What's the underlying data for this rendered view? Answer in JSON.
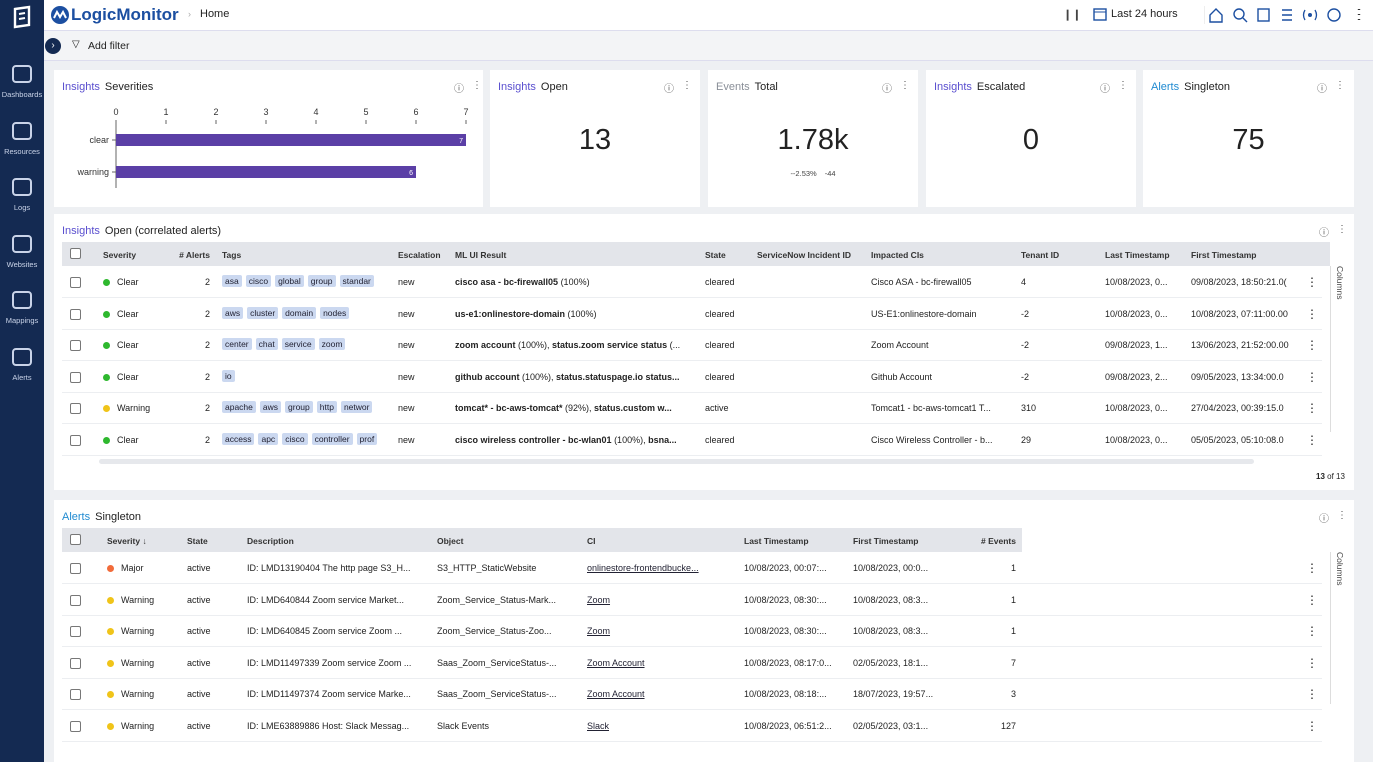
{
  "sidebar": [
    {
      "label": "Dashboards"
    },
    {
      "label": "Resources"
    },
    {
      "label": "Logs"
    },
    {
      "label": "Websites"
    },
    {
      "label": "Mappings"
    },
    {
      "label": "Alerts"
    }
  ],
  "header": {
    "brand": "LogicMonitor",
    "breadcrumb": "Home",
    "time_range": "Last 24 hours"
  },
  "filter_bar": {
    "add_filter": "Add filter"
  },
  "severities": {
    "category": "Insights",
    "category_color": "#5a4fcf",
    "title": "Severities",
    "chart": {
      "type": "bar",
      "categories": [
        "clear",
        "warning"
      ],
      "values": [
        7,
        6
      ],
      "color": "#5b3fa6",
      "xlim": [
        0,
        7
      ],
      "xticks": [
        0,
        1,
        2,
        3,
        4,
        5,
        6,
        7
      ]
    }
  },
  "kpis": [
    {
      "category": "Insights",
      "category_color": "#5a4fcf",
      "title": "Open",
      "value": 13
    },
    {
      "category": "Events",
      "category_color": "#8a8f98",
      "title": "Total",
      "value": "1.78k",
      "deltas": [
        "--2.53%",
        "-44"
      ]
    },
    {
      "category": "Insights",
      "category_color": "#5a4fcf",
      "title": "Escalated",
      "value": 0
    },
    {
      "category": "Alerts",
      "category_color": "#1f8ad1",
      "title": "Singleton",
      "value": 75
    }
  ],
  "insights_table": {
    "category": "Insights",
    "category_color": "#5a4fcf",
    "title": "Open (correlated alerts)",
    "columns": [
      "Severity",
      "# Alerts",
      "Tags",
      "Escalation",
      "ML UI Result",
      "State",
      "ServiceNow Incident ID",
      "Impacted CIs",
      "Tenant ID",
      "Last Timestamp",
      "First Timestamp"
    ],
    "rows": [
      {
        "severity": "Clear",
        "color": "#2eb82e",
        "alerts": 2,
        "tags": [
          "asa",
          "cisco",
          "global",
          "group",
          "standar"
        ],
        "escalation": "new",
        "ml_result": [
          "cisco asa - bc-firewall05",
          " (100%)"
        ],
        "state": "cleared",
        "impacted": "Cisco ASA - bc-firewall05",
        "tenant": 4,
        "last": "10/08/2023, 0...",
        "first": "09/08/2023, 18:50:21.0("
      },
      {
        "severity": "Clear",
        "color": "#2eb82e",
        "alerts": 2,
        "tags": [
          "aws",
          "cluster",
          "domain",
          "nodes"
        ],
        "escalation": "new",
        "ml_result": [
          "us-e1:onlinestore-domain",
          " (100%)"
        ],
        "state": "cleared",
        "impacted": "US-E1:onlinestore-domain",
        "tenant": -2,
        "last": "10/08/2023, 0...",
        "first": "10/08/2023, 07:11:00.00"
      },
      {
        "severity": "Clear",
        "color": "#2eb82e",
        "alerts": 2,
        "tags": [
          "center",
          "chat",
          "service",
          "zoom"
        ],
        "escalation": "new",
        "ml_result": [
          "zoom account",
          " (100%), ",
          "status.zoom service status",
          " (..."
        ],
        "state": "cleared",
        "impacted": "Zoom Account",
        "tenant": -2,
        "last": "09/08/2023, 1...",
        "first": "13/06/2023, 21:52:00.00"
      },
      {
        "severity": "Clear",
        "color": "#2eb82e",
        "alerts": 2,
        "tags": [
          "io"
        ],
        "escalation": "new",
        "ml_result": [
          "github account",
          " (100%), ",
          "status.statuspage.io status..."
        ],
        "state": "cleared",
        "impacted": "Github Account",
        "tenant": -2,
        "last": "09/08/2023, 2...",
        "first": "09/05/2023, 13:34:00.0"
      },
      {
        "severity": "Warning",
        "color": "#f0c419",
        "alerts": 2,
        "tags": [
          "apache",
          "aws",
          "group",
          "http",
          "networ"
        ],
        "escalation": "new",
        "ml_result": [
          "tomcat* - bc-aws-tomcat*",
          " (92%), ",
          "status.custom w..."
        ],
        "state": "active",
        "impacted": "Tomcat1 - bc-aws-tomcat1 T...",
        "tenant": 310,
        "last": "10/08/2023, 0...",
        "first": "27/04/2023, 00:39:15.0"
      },
      {
        "severity": "Clear",
        "color": "#2eb82e",
        "alerts": 2,
        "tags": [
          "access",
          "apc",
          "cisco",
          "controller",
          "prof"
        ],
        "escalation": "new",
        "ml_result": [
          "cisco wireless controller - bc-wlan01",
          " (100%), ",
          "bsna..."
        ],
        "state": "cleared",
        "impacted": "Cisco Wireless Controller - b...",
        "tenant": 29,
        "last": "10/08/2023, 0...",
        "first": "05/05/2023, 05:10:08.0"
      }
    ],
    "footer": {
      "count": "13",
      "of": "of 13"
    },
    "side": "Columns"
  },
  "alerts_table": {
    "category": "Alerts",
    "category_color": "#1f8ad1",
    "title": "Singleton",
    "columns": [
      "Severity ↓",
      "State",
      "Description",
      "Object",
      "CI",
      "Last Timestamp",
      "First Timestamp",
      "# Events"
    ],
    "rows": [
      {
        "severity": "Major",
        "color": "#f26b3a",
        "state": "active",
        "description": "ID: LMD13190404 The http page S3_H...",
        "object": "S3_HTTP_StaticWebsite",
        "ci": "onlinestore-frontendbucke...",
        "last": "10/08/2023, 00:07:...",
        "first": "10/08/2023, 00:0...",
        "events": 1
      },
      {
        "severity": "Warning",
        "color": "#f0c419",
        "state": "active",
        "description": "ID: LMD640844 Zoom service Market...",
        "object": "Zoom_Service_Status-Mark...",
        "ci": "Zoom",
        "last": "10/08/2023, 08:30:...",
        "first": "10/08/2023, 08:3...",
        "events": 1
      },
      {
        "severity": "Warning",
        "color": "#f0c419",
        "state": "active",
        "description": "ID: LMD640845 Zoom service Zoom ...",
        "object": "Zoom_Service_Status-Zoo...",
        "ci": "Zoom",
        "last": "10/08/2023, 08:30:...",
        "first": "10/08/2023, 08:3...",
        "events": 1
      },
      {
        "severity": "Warning",
        "color": "#f0c419",
        "state": "active",
        "description": "ID: LMD11497339 Zoom service Zoom ...",
        "object": "Saas_Zoom_ServiceStatus-...",
        "ci": "Zoom Account",
        "last": "10/08/2023, 08:17:0...",
        "first": "02/05/2023, 18:1...",
        "events": 7
      },
      {
        "severity": "Warning",
        "color": "#f0c419",
        "state": "active",
        "description": "ID: LMD11497374 Zoom service Marke...",
        "object": "Saas_Zoom_ServiceStatus-...",
        "ci": "Zoom Account",
        "last": "10/08/2023, 08:18:...",
        "first": "18/07/2023, 19:57...",
        "events": 3
      },
      {
        "severity": "Warning",
        "color": "#f0c419",
        "state": "active",
        "description": "ID: LME63889886 Host: Slack Messag...",
        "object": "Slack Events",
        "ci": "Slack",
        "last": "10/08/2023, 06:51:2...",
        "first": "02/05/2023, 03:1...",
        "events": 127
      }
    ],
    "side": "Columns"
  }
}
